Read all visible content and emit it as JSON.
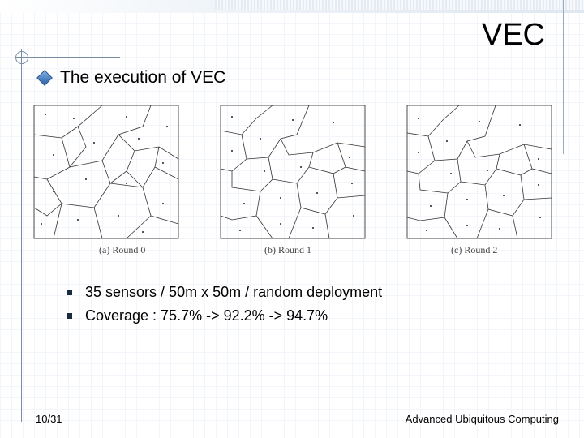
{
  "slide": {
    "title": "VEC",
    "bullet": "The execution of VEC",
    "sub_bullets": [
      "35 sensors  /  50m x 50m / random deployment",
      "Coverage : 75.7% -> 92.2% -> 94.7%"
    ],
    "figure": {
      "captions": [
        "(a) Round 0",
        "(b) Round 1",
        "(c) Round 2"
      ]
    },
    "slide_number": "10/31",
    "footer": "Advanced Ubiquitous Computing"
  }
}
